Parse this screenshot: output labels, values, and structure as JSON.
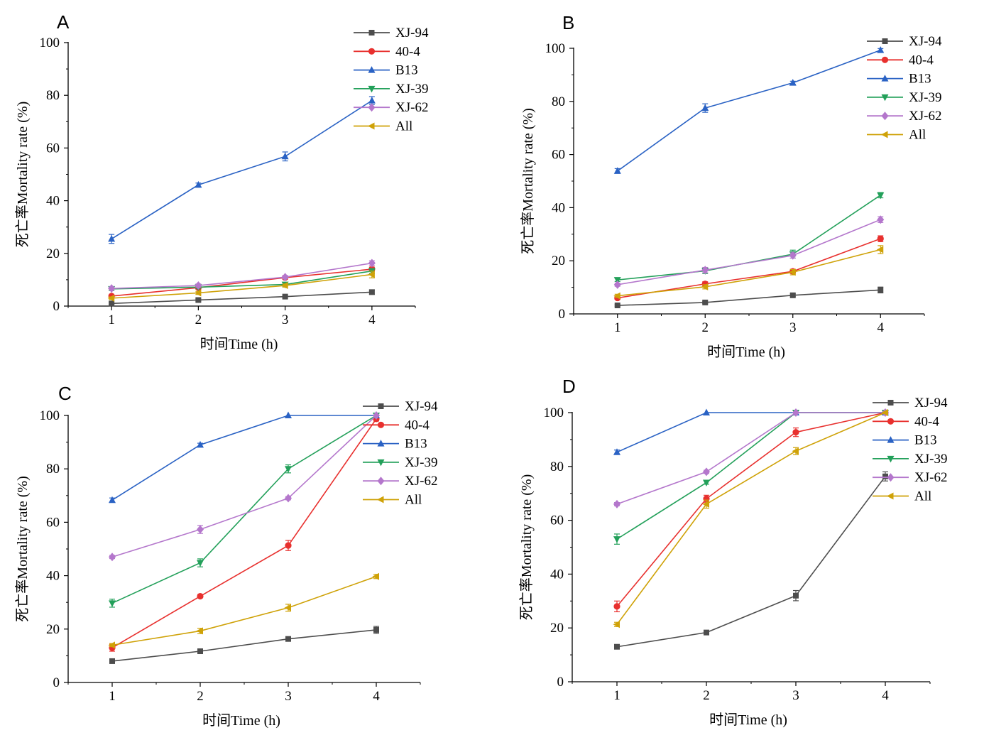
{
  "chart_data": [
    {
      "type": "line",
      "panel": "A",
      "xlabel": "时间Time (h)",
      "ylabel": "死亡率Mortality rate (%)",
      "x": [
        1,
        2,
        3,
        4
      ],
      "xlim": [
        0.5,
        4.5
      ],
      "ylim": [
        0,
        100
      ],
      "yticks": [
        0,
        20,
        40,
        60,
        80,
        100
      ],
      "legend_position": "top-right",
      "series": [
        {
          "name": "XJ-94",
          "color": "#4d4d4d",
          "marker": "square",
          "values": [
            1.0,
            2.3,
            3.6,
            5.3
          ],
          "errors": [
            0.3,
            0.4,
            0.5,
            0.8
          ]
        },
        {
          "name": "40-4",
          "color": "#e8302e",
          "marker": "circle",
          "values": [
            3.8,
            7.0,
            10.8,
            14.0
          ],
          "errors": [
            0.5,
            0.6,
            0.6,
            0.8
          ]
        },
        {
          "name": "B13",
          "color": "#2a62c4",
          "marker": "triangle-up",
          "values": [
            25.5,
            46.0,
            56.8,
            78.0
          ],
          "errors": [
            1.7,
            0.7,
            1.7,
            1.5
          ]
        },
        {
          "name": "XJ-39",
          "color": "#23a05a",
          "marker": "triangle-down",
          "values": [
            6.5,
            7.2,
            8.2,
            13.3
          ],
          "errors": [
            0.6,
            0.6,
            0.7,
            0.9
          ]
        },
        {
          "name": "XJ-62",
          "color": "#b477cc",
          "marker": "diamond",
          "values": [
            6.7,
            7.8,
            11.0,
            16.3
          ],
          "errors": [
            0.6,
            0.6,
            0.6,
            0.9
          ]
        },
        {
          "name": "All",
          "color": "#cfa208",
          "marker": "triangle-left",
          "values": [
            3.0,
            5.0,
            7.8,
            12.0
          ],
          "errors": [
            0.5,
            0.6,
            0.6,
            1.3
          ]
        }
      ]
    },
    {
      "type": "line",
      "panel": "B",
      "xlabel": "时间Time (h)",
      "ylabel": "死亡率Mortality rate (%)",
      "x": [
        1,
        2,
        3,
        4
      ],
      "xlim": [
        0.5,
        4.5
      ],
      "ylim": [
        0,
        100
      ],
      "yticks": [
        0,
        20,
        40,
        60,
        80,
        100
      ],
      "legend_position": "top-right",
      "series": [
        {
          "name": "XJ-94",
          "color": "#4d4d4d",
          "marker": "square",
          "values": [
            3.2,
            4.3,
            7.0,
            9.0
          ],
          "errors": [
            0.3,
            0.4,
            0.5,
            1.1
          ]
        },
        {
          "name": "40-4",
          "color": "#e8302e",
          "marker": "circle",
          "values": [
            6.0,
            11.3,
            16.0,
            28.3
          ],
          "errors": [
            0.5,
            0.8,
            0.8,
            1.1
          ]
        },
        {
          "name": "B13",
          "color": "#2a62c4",
          "marker": "triangle-up",
          "values": [
            53.8,
            77.5,
            87.0,
            99.3
          ],
          "errors": [
            0.9,
            1.6,
            0.6,
            0.6
          ]
        },
        {
          "name": "XJ-39",
          "color": "#23a05a",
          "marker": "triangle-down",
          "values": [
            12.8,
            16.2,
            22.5,
            44.7
          ],
          "errors": [
            0.6,
            1.0,
            1.5,
            1.0
          ]
        },
        {
          "name": "XJ-62",
          "color": "#b477cc",
          "marker": "diamond",
          "values": [
            11.0,
            16.5,
            22.0,
            35.5
          ],
          "errors": [
            0.6,
            1.0,
            1.0,
            1.1
          ]
        },
        {
          "name": "All",
          "color": "#cfa208",
          "marker": "triangle-left",
          "values": [
            6.8,
            10.2,
            15.7,
            24.2
          ],
          "errors": [
            0.6,
            0.8,
            1.0,
            1.5
          ]
        }
      ]
    },
    {
      "type": "line",
      "panel": "C",
      "xlabel": "时间Time (h)",
      "ylabel": "死亡率Mortality rate (%)",
      "x": [
        1,
        2,
        3,
        4
      ],
      "xlim": [
        0.5,
        4.5
      ],
      "ylim": [
        0,
        100
      ],
      "yticks": [
        0,
        20,
        40,
        60,
        80,
        100
      ],
      "legend_position": "top-right",
      "series": [
        {
          "name": "XJ-94",
          "color": "#4d4d4d",
          "marker": "square",
          "values": [
            8.0,
            11.7,
            16.3,
            19.7
          ],
          "errors": [
            0.3,
            0.6,
            0.8,
            1.3
          ]
        },
        {
          "name": "40-4",
          "color": "#e8302e",
          "marker": "circle",
          "values": [
            13.0,
            32.3,
            51.3,
            98.7
          ],
          "errors": [
            1.3,
            0.6,
            1.9,
            0.8
          ]
        },
        {
          "name": "B13",
          "color": "#2a62c4",
          "marker": "triangle-up",
          "values": [
            68.3,
            89.0,
            100.0,
            100.0
          ],
          "errors": [
            0.8,
            0.6,
            0.0,
            0.0
          ]
        },
        {
          "name": "XJ-39",
          "color": "#23a05a",
          "marker": "triangle-down",
          "values": [
            29.7,
            44.8,
            80.0,
            100.0
          ],
          "errors": [
            1.5,
            1.5,
            1.5,
            0.0
          ]
        },
        {
          "name": "XJ-62",
          "color": "#b477cc",
          "marker": "diamond",
          "values": [
            47.0,
            57.3,
            69.0,
            100.0
          ],
          "errors": [
            0.6,
            1.5,
            0.6,
            0.0
          ]
        },
        {
          "name": "All",
          "color": "#cfa208",
          "marker": "triangle-left",
          "values": [
            14.0,
            19.3,
            28.0,
            39.7
          ],
          "errors": [
            0.6,
            1.0,
            1.3,
            0.8
          ]
        }
      ]
    },
    {
      "type": "line",
      "panel": "D",
      "xlabel": "时间Time (h)",
      "ylabel": "死亡率Mortality rate (%)",
      "x": [
        1,
        2,
        3,
        4
      ],
      "xlim": [
        0.5,
        4.5
      ],
      "ylim": [
        0,
        100
      ],
      "yticks": [
        0,
        20,
        40,
        60,
        80,
        100
      ],
      "legend_position": "top-right",
      "series": [
        {
          "name": "XJ-94",
          "color": "#4d4d4d",
          "marker": "square",
          "values": [
            13.0,
            18.3,
            32.0,
            76.3
          ],
          "errors": [
            0.4,
            0.8,
            1.9,
            1.7
          ]
        },
        {
          "name": "40-4",
          "color": "#e8302e",
          "marker": "circle",
          "values": [
            28.0,
            68.0,
            92.7,
            100.0
          ],
          "errors": [
            2.0,
            1.3,
            1.6,
            0.0
          ]
        },
        {
          "name": "B13",
          "color": "#2a62c4",
          "marker": "triangle-up",
          "values": [
            85.3,
            100.0,
            100.0,
            100.0
          ],
          "errors": [
            0.8,
            0.0,
            0.0,
            0.0
          ]
        },
        {
          "name": "XJ-39",
          "color": "#23a05a",
          "marker": "triangle-down",
          "values": [
            53.0,
            74.0,
            100.0,
            100.0
          ],
          "errors": [
            1.9,
            0.6,
            0.0,
            0.0
          ]
        },
        {
          "name": "XJ-62",
          "color": "#b477cc",
          "marker": "diamond",
          "values": [
            66.0,
            78.0,
            100.0,
            100.0
          ],
          "errors": [
            0.6,
            0.6,
            0.0,
            0.0
          ]
        },
        {
          "name": "All",
          "color": "#cfa208",
          "marker": "triangle-left",
          "values": [
            21.3,
            66.0,
            85.7,
            100.0
          ],
          "errors": [
            0.8,
            1.5,
            1.3,
            0.0
          ]
        }
      ]
    }
  ]
}
